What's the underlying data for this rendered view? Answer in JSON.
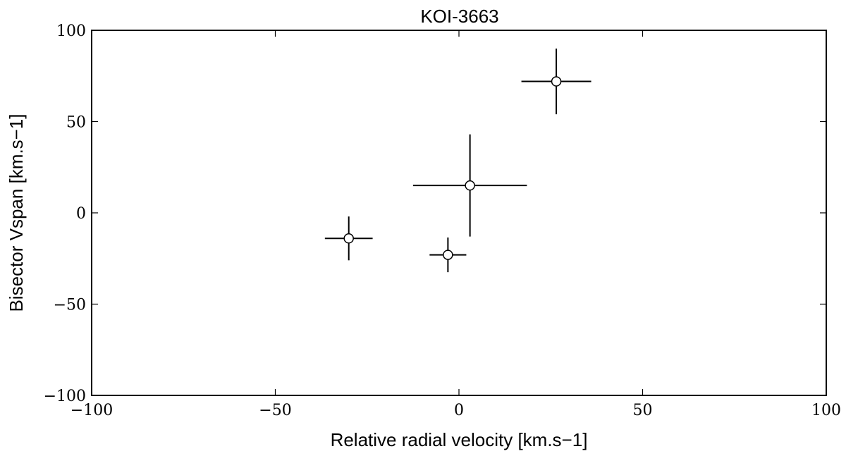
{
  "chart_data": {
    "type": "scatter",
    "title": "KOI-3663",
    "xlabel": "Relative radial velocity [km.s−1]",
    "ylabel": "Bisector Vspan [km.s−1]",
    "xlim": [
      -100,
      100
    ],
    "ylim": [
      -100,
      100
    ],
    "xticks": [
      -100,
      -50,
      0,
      50,
      100
    ],
    "yticks": [
      -100,
      -50,
      0,
      50,
      100
    ],
    "xtick_labels": [
      "−100",
      "−50",
      "0",
      "50",
      "100"
    ],
    "ytick_labels": [
      "−100",
      "−50",
      "0",
      "50",
      "100"
    ],
    "grid": false,
    "marker": "open-circle",
    "points": [
      {
        "x": -30.0,
        "y": -14.0,
        "xerr": 6.5,
        "yerr": 12.0
      },
      {
        "x": -3.0,
        "y": -23.0,
        "xerr": 5.0,
        "yerr": 9.5
      },
      {
        "x": 3.0,
        "y": 15.0,
        "xerr": 15.5,
        "yerr": 28.0
      },
      {
        "x": 26.5,
        "y": 72.0,
        "xerr": 9.5,
        "yerr": 18.0
      }
    ]
  }
}
